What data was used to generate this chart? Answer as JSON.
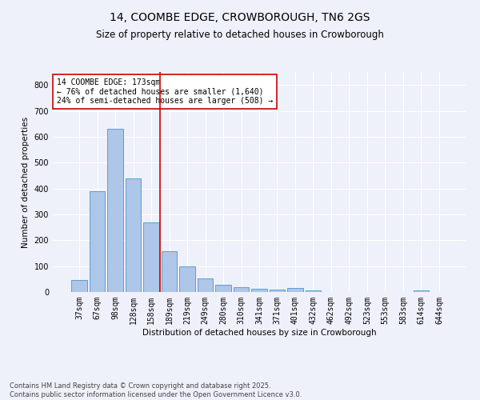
{
  "title": "14, COOMBE EDGE, CROWBOROUGH, TN6 2GS",
  "subtitle": "Size of property relative to detached houses in Crowborough",
  "xlabel": "Distribution of detached houses by size in Crowborough",
  "ylabel": "Number of detached properties",
  "categories": [
    "37sqm",
    "67sqm",
    "98sqm",
    "128sqm",
    "158sqm",
    "189sqm",
    "219sqm",
    "249sqm",
    "280sqm",
    "310sqm",
    "341sqm",
    "371sqm",
    "401sqm",
    "432sqm",
    "462sqm",
    "492sqm",
    "523sqm",
    "553sqm",
    "583sqm",
    "614sqm",
    "644sqm"
  ],
  "values": [
    47,
    390,
    630,
    440,
    270,
    157,
    100,
    52,
    28,
    18,
    13,
    10,
    15,
    5,
    0,
    0,
    0,
    0,
    0,
    5,
    0
  ],
  "bar_color": "#aec6e8",
  "bar_edge_color": "#5a9fd4",
  "vline_x": 4.5,
  "vline_color": "#cc0000",
  "annotation_text": "14 COOMBE EDGE: 173sqm\n← 76% of detached houses are smaller (1,640)\n24% of semi-detached houses are larger (508) →",
  "annotation_box_color": "#ffffff",
  "annotation_box_edge": "#cc0000",
  "bg_color": "#eef1fa",
  "grid_color": "#ffffff",
  "footer": "Contains HM Land Registry data © Crown copyright and database right 2025.\nContains public sector information licensed under the Open Government Licence v3.0.",
  "ylim": [
    0,
    850
  ],
  "title_fontsize": 10,
  "subtitle_fontsize": 8.5,
  "axis_label_fontsize": 7.5,
  "tick_fontsize": 7,
  "annotation_fontsize": 7,
  "footer_fontsize": 6
}
